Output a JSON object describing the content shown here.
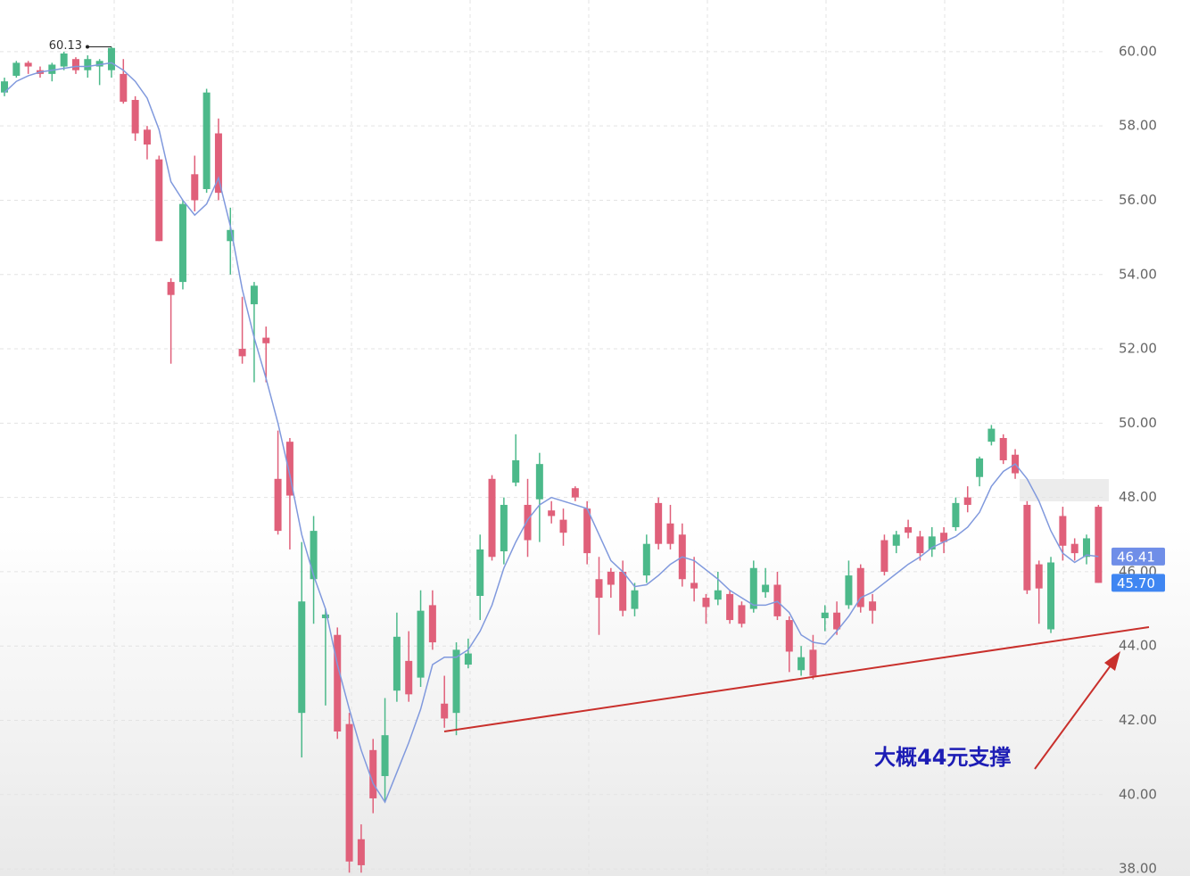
{
  "chart_data": {
    "type": "candlestick",
    "open": [
      58.9,
      59.35,
      59.7,
      59.5,
      59.4,
      59.6,
      59.8,
      59.5,
      59.6,
      59.5,
      59.4,
      58.7,
      57.9,
      57.1,
      53.8,
      53.8,
      56.7,
      56.3,
      57.8,
      54.9,
      52.0,
      53.2,
      52.3,
      48.5,
      49.5,
      42.2,
      45.8,
      44.75,
      44.3,
      41.9,
      38.8,
      41.2,
      40.5,
      42.8,
      43.6,
      43.15,
      45.1,
      42.45,
      42.2,
      43.5,
      45.35,
      48.5,
      46.55,
      48.4,
      47.8,
      47.95,
      47.65,
      47.4,
      48.25,
      47.7,
      45.8,
      46.0,
      46.0,
      45.0,
      45.9,
      47.85,
      47.3,
      47.0,
      45.7,
      45.3,
      45.25,
      45.4,
      45.1,
      45.0,
      45.45,
      45.65,
      44.7,
      43.35,
      43.9,
      44.75,
      44.9,
      45.1,
      46.1,
      45.2,
      46.85,
      46.7,
      47.2,
      46.95,
      46.6,
      47.05,
      47.2,
      48.0,
      48.55,
      49.5,
      49.6,
      49.15,
      47.8,
      46.2,
      44.45,
      47.5,
      46.75,
      46.4,
      47.75
    ],
    "high": [
      59.3,
      59.75,
      59.75,
      59.6,
      59.7,
      60.0,
      59.85,
      59.9,
      59.8,
      60.13,
      59.8,
      58.8,
      58.0,
      57.2,
      53.9,
      56.0,
      57.2,
      59.0,
      58.2,
      55.8,
      53.4,
      53.8,
      52.6,
      49.8,
      49.6,
      46.8,
      47.5,
      45.0,
      44.5,
      42.2,
      39.2,
      41.5,
      42.6,
      44.9,
      44.4,
      45.5,
      45.5,
      43.2,
      44.1,
      44.2,
      47.0,
      48.6,
      48.0,
      49.7,
      48.5,
      49.2,
      47.9,
      47.7,
      48.3,
      47.9,
      46.4,
      46.1,
      46.3,
      45.7,
      47.0,
      48.0,
      47.8,
      47.3,
      46.4,
      45.4,
      46.0,
      45.5,
      45.2,
      46.3,
      46.1,
      46.0,
      44.8,
      44.0,
      44.3,
      45.1,
      45.2,
      46.3,
      46.2,
      45.4,
      47.0,
      47.1,
      47.4,
      47.1,
      47.2,
      47.2,
      48.0,
      48.3,
      49.1,
      49.95,
      49.7,
      49.3,
      47.9,
      46.3,
      46.4,
      47.75,
      46.9,
      47.0,
      47.8
    ],
    "low": [
      58.8,
      59.3,
      59.4,
      59.3,
      59.2,
      59.5,
      59.4,
      59.3,
      59.1,
      59.3,
      58.6,
      57.6,
      57.1,
      54.9,
      51.6,
      53.6,
      55.7,
      56.2,
      56.0,
      54.0,
      51.6,
      51.1,
      51.1,
      47.0,
      46.6,
      41.0,
      44.6,
      42.4,
      41.5,
      37.9,
      37.9,
      39.5,
      39.8,
      42.5,
      42.5,
      42.9,
      43.9,
      41.8,
      41.6,
      43.4,
      44.7,
      46.3,
      46.2,
      48.3,
      46.4,
      46.8,
      47.3,
      46.7,
      47.9,
      46.2,
      44.3,
      45.3,
      44.8,
      44.8,
      45.7,
      46.6,
      46.6,
      45.6,
      45.2,
      44.6,
      45.1,
      44.6,
      44.5,
      44.9,
      45.3,
      44.7,
      43.3,
      43.2,
      43.1,
      44.4,
      44.3,
      45.0,
      44.9,
      44.6,
      45.9,
      46.5,
      46.9,
      46.3,
      46.4,
      46.5,
      47.1,
      47.6,
      48.3,
      49.4,
      48.9,
      48.5,
      45.4,
      44.6,
      44.35,
      46.3,
      46.3,
      46.2,
      45.7
    ],
    "close": [
      59.2,
      59.7,
      59.6,
      59.4,
      59.65,
      59.95,
      59.5,
      59.8,
      59.75,
      60.1,
      58.65,
      57.8,
      57.5,
      54.9,
      53.45,
      55.9,
      56.0,
      58.9,
      56.2,
      55.2,
      51.8,
      53.7,
      52.15,
      47.1,
      48.05,
      45.2,
      47.1,
      44.85,
      41.7,
      38.2,
      38.1,
      39.9,
      41.6,
      44.25,
      42.7,
      44.95,
      44.1,
      42.05,
      43.9,
      43.8,
      46.6,
      46.4,
      47.8,
      49.0,
      46.85,
      48.9,
      47.5,
      47.05,
      48.0,
      46.5,
      45.3,
      45.65,
      44.95,
      45.5,
      46.75,
      46.75,
      46.75,
      45.8,
      45.55,
      45.05,
      45.5,
      44.7,
      44.6,
      46.1,
      45.65,
      44.8,
      43.85,
      43.7,
      43.2,
      44.9,
      44.45,
      45.9,
      45.05,
      44.95,
      46.0,
      47.0,
      47.05,
      46.5,
      46.95,
      46.8,
      47.85,
      47.8,
      49.05,
      49.85,
      49.0,
      48.65,
      45.5,
      45.55,
      46.25,
      46.7,
      46.5,
      46.9,
      45.7
    ],
    "up_color": "#4cb98a",
    "down_color": "#e0607a",
    "ma_line": {
      "color": "#8099dd",
      "values": [
        58.9,
        59.2,
        59.35,
        59.45,
        59.5,
        59.55,
        59.6,
        59.6,
        59.65,
        59.7,
        59.5,
        59.2,
        58.75,
        57.9,
        56.5,
        56.0,
        55.6,
        55.9,
        56.6,
        55.3,
        53.6,
        52.3,
        51.2,
        50.0,
        48.6,
        47.0,
        45.9,
        45.0,
        43.5,
        42.3,
        41.2,
        40.3,
        39.8,
        40.6,
        41.4,
        42.3,
        43.5,
        43.7,
        43.7,
        43.9,
        44.4,
        45.1,
        46.1,
        46.8,
        47.4,
        47.8,
        48.0,
        47.9,
        47.8,
        47.7,
        47.0,
        46.3,
        46.0,
        45.6,
        45.65,
        45.9,
        46.2,
        46.4,
        46.3,
        46.05,
        45.8,
        45.5,
        45.3,
        45.1,
        45.1,
        45.2,
        44.9,
        44.3,
        44.1,
        44.05,
        44.4,
        44.8,
        45.3,
        45.45,
        45.7,
        45.95,
        46.2,
        46.4,
        46.65,
        46.8,
        46.95,
        47.2,
        47.6,
        48.3,
        48.7,
        48.9,
        48.5,
        47.9,
        47.1,
        46.5,
        46.25,
        46.45,
        46.41
      ]
    },
    "ylim": [
      37.81,
      61.39
    ],
    "yticks": [
      {
        "value": 38,
        "label": "38.00"
      },
      {
        "value": 40,
        "label": "40.00"
      },
      {
        "value": 42,
        "label": "42.00"
      },
      {
        "value": 44,
        "label": "44.00"
      },
      {
        "value": 46,
        "label": "46.00"
      },
      {
        "value": 48,
        "label": "48.00"
      },
      {
        "value": 50,
        "label": "50.00"
      },
      {
        "value": 52,
        "label": "52.00"
      },
      {
        "value": 54,
        "label": "54.00"
      },
      {
        "value": 56,
        "label": "56.00"
      },
      {
        "value": 58,
        "label": "58.00"
      },
      {
        "value": 60,
        "label": "60.00"
      }
    ],
    "grid": true,
    "price_tags": [
      {
        "value": 46.41,
        "label": "46.41",
        "color": "#6f8ee8"
      },
      {
        "value": 45.7,
        "label": "45.70",
        "color": "#3f86f2"
      }
    ],
    "support_line": {
      "color": "#c9302c",
      "y": [
        41.7,
        44.51
      ]
    },
    "annotation": "大概44元支撑"
  }
}
